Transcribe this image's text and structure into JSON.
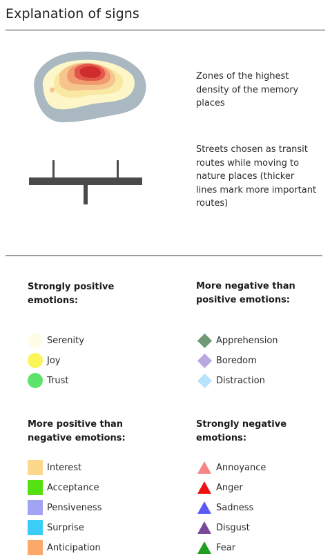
{
  "title": "Explanation of signs",
  "density": {
    "text": "Zones of the highest density of the memory places"
  },
  "streets": {
    "text": "Streets chosen as transit routes while moving to nature places (thicker lines mark more important routes)"
  },
  "groups": {
    "strongly_positive": {
      "heading": "Strongly positive emotions:",
      "items": [
        {
          "label": "Serenity",
          "color": "#fffde6",
          "shape": "circle"
        },
        {
          "label": "Joy",
          "color": "#fbf55a",
          "shape": "circle"
        },
        {
          "label": "Trust",
          "color": "#5ce46a",
          "shape": "circle"
        }
      ]
    },
    "more_negative": {
      "heading": "More negative than positive emotions:",
      "items": [
        {
          "label": "Apprehension",
          "color": "#6f9a74",
          "shape": "diamond"
        },
        {
          "label": "Boredom",
          "color": "#b9a7e0",
          "shape": "diamond"
        },
        {
          "label": "Distraction",
          "color": "#b8e3fb",
          "shape": "diamond"
        }
      ]
    },
    "more_positive": {
      "heading": "More positive than negative emotions:",
      "items": [
        {
          "label": "Interest",
          "color": "#fdd78b",
          "shape": "square"
        },
        {
          "label": "Acceptance",
          "color": "#55e012",
          "shape": "square"
        },
        {
          "label": "Pensiveness",
          "color": "#a3a3f6",
          "shape": "square"
        },
        {
          "label": "Surprise",
          "color": "#3ccdf6",
          "shape": "square"
        },
        {
          "label": "Anticipation",
          "color": "#fba96a",
          "shape": "square"
        }
      ]
    },
    "strongly_negative": {
      "heading": "Strongly negative emotions:",
      "items": [
        {
          "label": "Annoyance",
          "color": "#f58686",
          "shape": "triangle"
        },
        {
          "label": "Anger",
          "color": "#ee1111",
          "shape": "triangle"
        },
        {
          "label": "Sadness",
          "color": "#5b5bf4",
          "shape": "triangle"
        },
        {
          "label": "Disgust",
          "color": "#7a4a9a",
          "shape": "triangle"
        },
        {
          "label": "Fear",
          "color": "#1f9e1f",
          "shape": "triangle"
        }
      ]
    }
  },
  "colors": {
    "density_outer": "#a9b8c1",
    "density_pale": "#fdf6c8",
    "density_yellow": "#f8e8a2",
    "density_orange_light": "#f6c58e",
    "density_orange": "#f09a70",
    "density_red": "#e2574a",
    "density_core": "#cf2d2d",
    "street": "#4a4a4a"
  }
}
